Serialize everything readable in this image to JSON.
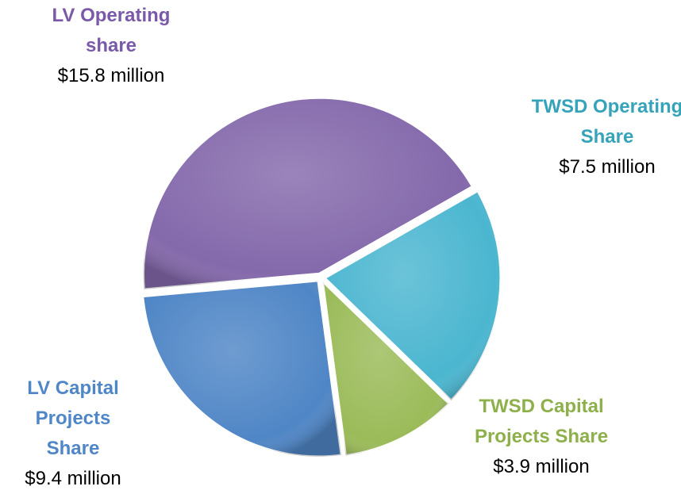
{
  "chart_data": {
    "type": "pie",
    "categories": [
      "LV Operating share",
      "TWSD Operating Share",
      "TWSD Capital Projects Share",
      "LV Capital Projects Share"
    ],
    "values": [
      15.8,
      7.5,
      3.9,
      9.4
    ],
    "value_labels": [
      "$15.8 million",
      "$7.5 million",
      "$3.9 million",
      "$9.4 million"
    ],
    "colors": [
      "#8469ab",
      "#4bb6d0",
      "#9bbb59",
      "#4f86c6"
    ],
    "label_colors": [
      "#7a5aa8",
      "#35a3b9",
      "#8db04a",
      "#4f86c6"
    ]
  }
}
